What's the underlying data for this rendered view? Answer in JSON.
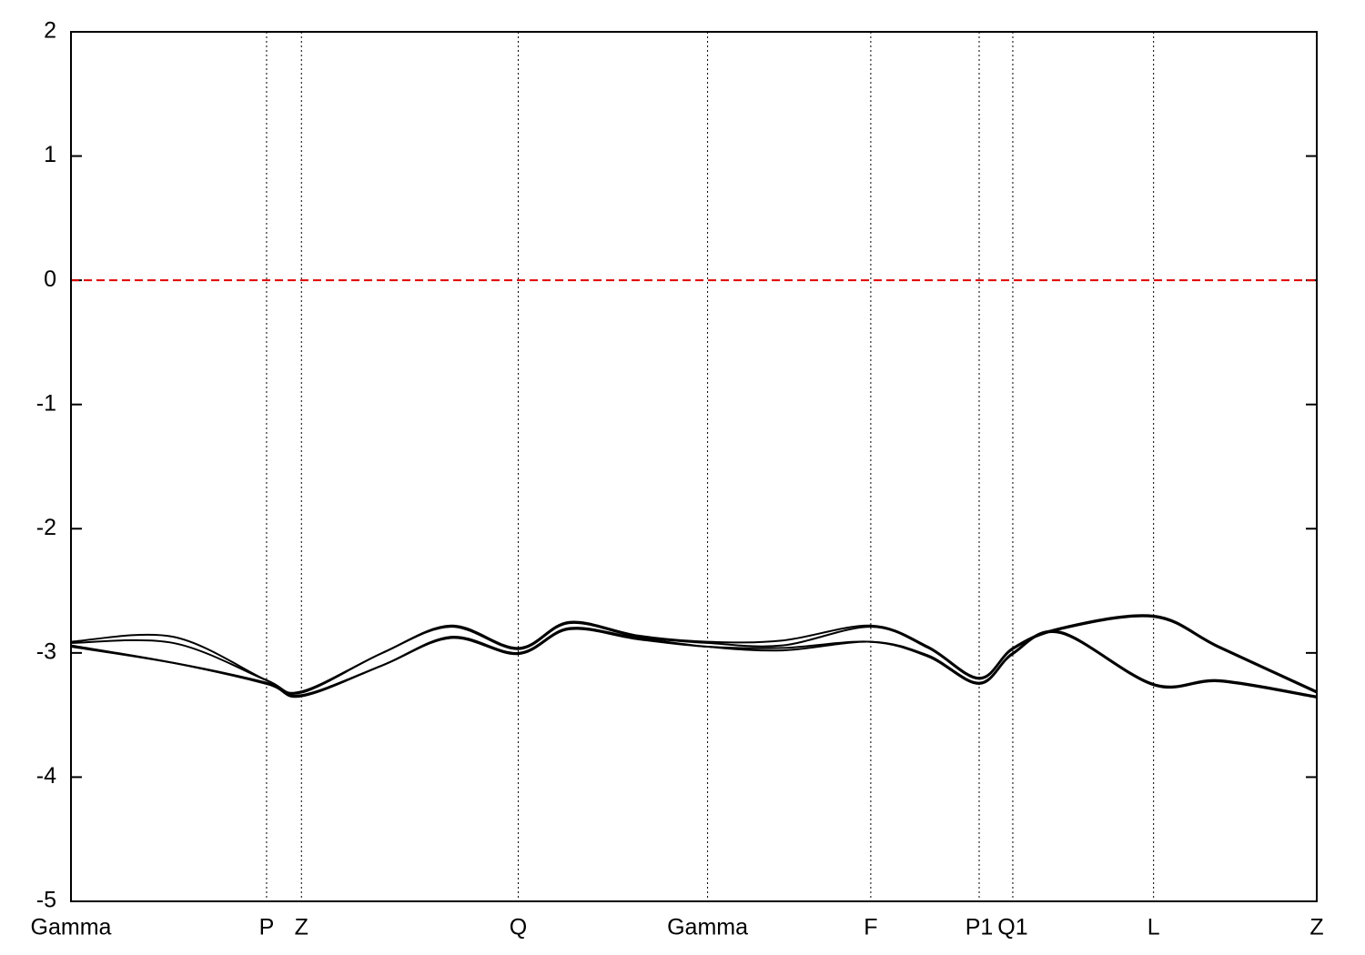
{
  "chart_data": {
    "type": "line",
    "x": [
      0,
      0.082,
      0.157,
      0.185,
      0.25,
      0.305,
      0.359,
      0.4,
      0.455,
      0.511,
      0.571,
      0.642,
      0.688,
      0.729,
      0.756,
      0.794,
      0.869,
      0.922,
      1.0
    ],
    "series": [
      {
        "color": "#000000",
        "values": [
          -2.91,
          -2.87,
          -3.22,
          -3.31,
          -3.0,
          -2.78,
          -2.96,
          -2.75,
          -2.86,
          -2.91,
          -2.9,
          -2.78,
          -2.95,
          -3.2,
          -2.96,
          -2.8,
          -2.7,
          -2.95,
          -3.31
        ]
      },
      {
        "color": "#000000",
        "values": [
          -2.94,
          -3.08,
          -3.25,
          -3.35,
          -3.1,
          -2.87,
          -3.0,
          -2.8,
          -2.88,
          -2.95,
          -2.98,
          -2.91,
          -3.02,
          -3.24,
          -3.0,
          -2.83,
          -3.25,
          -3.22,
          -3.35
        ]
      },
      {
        "color": "#000000",
        "values": [
          -2.92,
          -2.92,
          -3.22,
          -3.32,
          -3.0,
          -2.79,
          -2.97,
          -2.76,
          -2.87,
          -2.92,
          -2.94,
          -2.79,
          -2.96,
          -3.21,
          -2.97,
          -2.81,
          -2.71,
          -2.96,
          -3.32
        ]
      },
      {
        "color": "#000000",
        "values": [
          -2.95,
          -3.08,
          -3.24,
          -3.34,
          -3.1,
          -2.88,
          -3.01,
          -2.81,
          -2.89,
          -2.95,
          -2.96,
          -2.91,
          -3.03,
          -3.25,
          -3.01,
          -2.84,
          -3.26,
          -3.23,
          -3.36
        ]
      }
    ],
    "xlim": [
      0,
      1.0
    ],
    "xticks": [
      {
        "value": 0,
        "label": "Gamma"
      },
      {
        "value": 0.157,
        "label": "P"
      },
      {
        "value": 0.185,
        "label": "Z"
      },
      {
        "value": 0.359,
        "label": "Q"
      },
      {
        "value": 0.511,
        "label": "Gamma"
      },
      {
        "value": 0.642,
        "label": "F"
      },
      {
        "value": 0.729,
        "label": "P1"
      },
      {
        "value": 0.756,
        "label": "Q1"
      },
      {
        "value": 0.869,
        "label": "L"
      },
      {
        "value": 1.0,
        "label": "Z"
      }
    ],
    "ylim": [
      -5,
      2
    ],
    "yticks": [
      -5,
      -4,
      -3,
      -2,
      -1,
      0,
      1,
      2
    ],
    "zero_line": true,
    "zero_line_color": "#e00000"
  }
}
